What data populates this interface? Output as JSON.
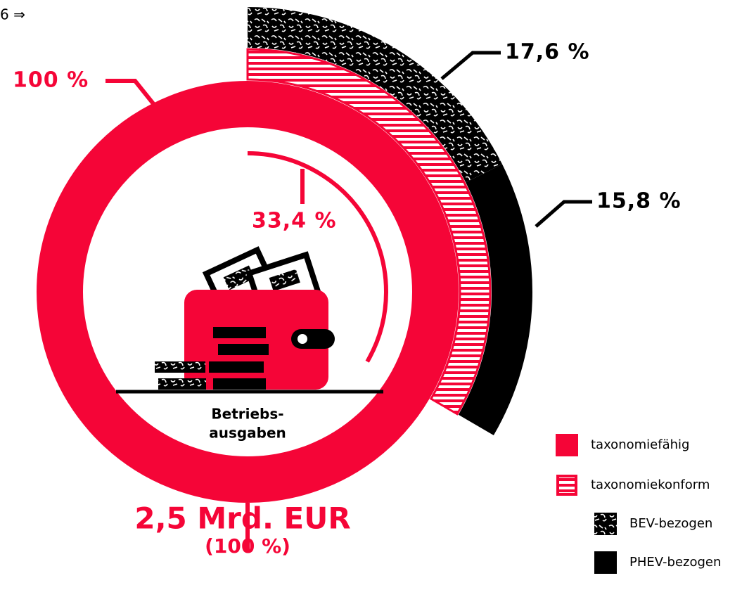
{
  "page_marker": "6 ⇒",
  "chart_data": {
    "type": "donut",
    "categories": [
      "taxonomiefähig",
      "taxonomiekonform",
      "BEV-bezogen",
      "PHEV-bezogen"
    ],
    "values": [
      100,
      33.4,
      17.6,
      15.8
    ],
    "value_labels": [
      "100 %",
      "33,4 %",
      "17,6 %",
      "15,8 %"
    ],
    "colors": [
      "#f50537",
      "#f50537",
      "#000000",
      "#000000"
    ],
    "center_label": [
      "Betriebs-",
      "ausgaben"
    ],
    "total_label": "2,5 Mrd. EUR",
    "total_share_label": "(100 %)"
  }
}
